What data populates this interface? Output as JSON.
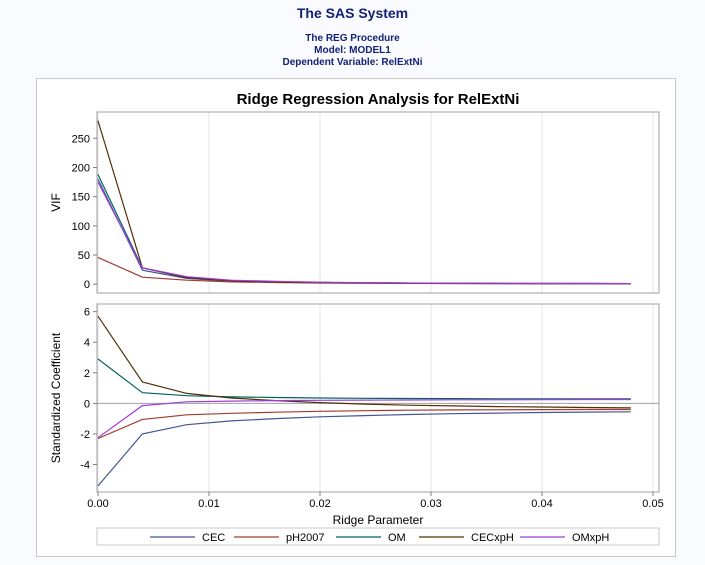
{
  "header": {
    "system_title": "The SAS System",
    "procedure": "The REG Procedure",
    "model": "Model: MODEL1",
    "dependent": "Dependent Variable: RelExtNi"
  },
  "chart_data": {
    "type": "line",
    "title": "Ridge Regression Analysis for RelExtNi",
    "xlabel": "Ridge Parameter",
    "xlim": [
      0,
      0.05
    ],
    "xticks": [
      "0.00",
      "0.01",
      "0.02",
      "0.03",
      "0.04",
      "0.05"
    ],
    "x": [
      0,
      0.004,
      0.008,
      0.012,
      0.016,
      0.02,
      0.024,
      0.028,
      0.032,
      0.036,
      0.04,
      0.044,
      0.048
    ],
    "legend_position": "bottom",
    "panels": [
      {
        "ylabel": "VIF",
        "ylim": [
          -15,
          295
        ],
        "yticks": [
          "0",
          "50",
          "100",
          "150",
          "200",
          "250"
        ],
        "reference_line": null,
        "series": [
          {
            "name": "CEC",
            "color": "#445694",
            "values": [
              180,
              24,
              10,
              5,
              3.5,
              2.5,
              2,
              1.6,
              1.3,
              1.1,
              1,
              0.9,
              0.8
            ]
          },
          {
            "name": "pH2007",
            "color": "#A23A2E",
            "values": [
              46,
              12,
              7,
              4,
              3,
              2.2,
              1.8,
              1.5,
              1.2,
              1.1,
              1,
              0.9,
              0.8
            ]
          },
          {
            "name": "OM",
            "color": "#01665E",
            "values": [
              188,
              28,
              12,
              6,
              4,
              3,
              2.4,
              2,
              1.7,
              1.5,
              1.3,
              1.2,
              1.1
            ]
          },
          {
            "name": "CECxpH",
            "color": "#543005",
            "values": [
              280,
              28,
              11,
              6,
              4,
              3,
              2.4,
              2,
              1.7,
              1.5,
              1.3,
              1.2,
              1.1
            ]
          },
          {
            "name": "OMxpH",
            "color": "#9D3CDB",
            "values": [
              175,
              28,
              13,
              7,
              5,
              3.5,
              2.8,
              2.2,
              1.8,
              1.6,
              1.4,
              1.2,
              1.1
            ]
          }
        ]
      },
      {
        "ylabel": "Standardized Coefficient",
        "ylim": [
          -5.8,
          6.5
        ],
        "yticks": [
          "-4",
          "-2",
          "0",
          "2",
          "4",
          "6"
        ],
        "reference_line": 0,
        "series": [
          {
            "name": "CEC",
            "color": "#445694",
            "values": [
              -5.4,
              -2.0,
              -1.4,
              -1.15,
              -1.0,
              -0.88,
              -0.8,
              -0.73,
              -0.68,
              -0.64,
              -0.6,
              -0.57,
              -0.55
            ]
          },
          {
            "name": "pH2007",
            "color": "#A23A2E",
            "values": [
              -2.3,
              -1.05,
              -0.75,
              -0.65,
              -0.58,
              -0.52,
              -0.48,
              -0.45,
              -0.43,
              -0.42,
              -0.41,
              -0.4,
              -0.4
            ]
          },
          {
            "name": "OM",
            "color": "#01665E",
            "values": [
              2.9,
              0.7,
              0.5,
              0.42,
              0.38,
              0.35,
              0.33,
              0.32,
              0.31,
              0.3,
              0.3,
              0.3,
              0.3
            ]
          },
          {
            "name": "CECxpH",
            "color": "#543005",
            "values": [
              5.7,
              1.4,
              0.65,
              0.35,
              0.18,
              0.05,
              -0.05,
              -0.12,
              -0.17,
              -0.21,
              -0.24,
              -0.27,
              -0.3
            ]
          },
          {
            "name": "OMxpH",
            "color": "#9D3CDB",
            "values": [
              -2.25,
              -0.15,
              0.1,
              0.15,
              0.18,
              0.2,
              0.21,
              0.22,
              0.23,
              0.23,
              0.24,
              0.25,
              0.25
            ]
          }
        ]
      }
    ]
  }
}
